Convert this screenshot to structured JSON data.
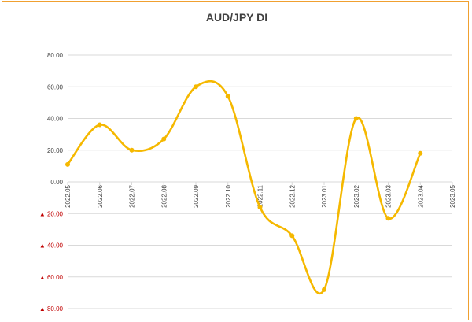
{
  "chart_data": {
    "type": "line",
    "title": "AUD/JPY  DI",
    "smooth": true,
    "grid": "horizontal",
    "ylim": [
      -80,
      80
    ],
    "y_ticks": [
      80,
      60,
      40,
      20,
      0,
      -20,
      -40,
      -60,
      -80
    ],
    "y_tick_labels": [
      "80.00",
      "60.00",
      "40.00",
      "20.00",
      "0.00",
      "▲ 20.00",
      "▲ 40.00",
      "▲ 60.00",
      "▲ 80.00"
    ],
    "negative_label_color": "#c00000",
    "categories": [
      "2022.05",
      "2022.06",
      "2022.07",
      "2022.08",
      "2022.09",
      "2022.10",
      "2022.11",
      "2022.12",
      "2023.01",
      "2023.02",
      "2023.03",
      "2023.04",
      "2023.05"
    ],
    "series": [
      {
        "color": "#f5b800",
        "values": [
          11,
          36,
          20,
          27,
          60,
          54,
          -16,
          -34,
          -68,
          40,
          -23,
          18,
          null
        ]
      }
    ]
  }
}
